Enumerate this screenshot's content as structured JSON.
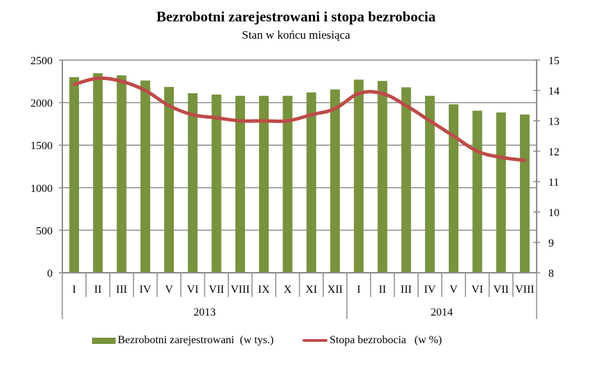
{
  "header": {
    "title": "Bezrobotni zarejestrowani i stopa bezrobocia",
    "subtitle": "Stan w końcu miesiąca"
  },
  "legend": {
    "bar_label": "Bezrobotni zarejestrowani  (w tys.)",
    "line_label": "Stopa bezrobocia   (w %)"
  },
  "colors": {
    "bar": "#77933C",
    "line": "#BE4B48",
    "grid": "#8C8C8C",
    "axis": "#8C8C8C"
  },
  "chart_data": {
    "type": "bar+line",
    "title": "Bezrobotni zarejestrowani i stopa bezrobocia",
    "subtitle": "Stan w końcu miesiąca",
    "categories": [
      "I",
      "II",
      "III",
      "IV",
      "V",
      "VI",
      "VII",
      "VIII",
      "IX",
      "X",
      "XI",
      "XII",
      "I",
      "II",
      "III",
      "IV",
      "V",
      "VI",
      "VII",
      "VIII"
    ],
    "groups": [
      {
        "label": "2013",
        "start": 0,
        "count": 12
      },
      {
        "label": "2014",
        "start": 12,
        "count": 8
      }
    ],
    "series": [
      {
        "name": "Bezrobotni zarejestrowani  (w tys.)",
        "type": "bar",
        "axis": "left",
        "values": [
          2300,
          2345,
          2320,
          2260,
          2185,
          2110,
          2095,
          2080,
          2080,
          2080,
          2120,
          2155,
          2270,
          2255,
          2180,
          2080,
          1980,
          1905,
          1885,
          1860
        ]
      },
      {
        "name": "Stopa bezrobocia   (w %)",
        "type": "line",
        "axis": "right",
        "values": [
          14.2,
          14.4,
          14.3,
          14.0,
          13.5,
          13.2,
          13.1,
          13.0,
          13.0,
          13.0,
          13.2,
          13.4,
          13.9,
          13.9,
          13.5,
          13.0,
          12.5,
          12.0,
          11.8,
          11.7
        ]
      }
    ],
    "y_left": {
      "min": 0,
      "max": 2500,
      "step": 500,
      "ticks": [
        "0",
        "500",
        "1000",
        "1500",
        "2000",
        "2500"
      ]
    },
    "y_right": {
      "min": 8,
      "max": 15,
      "step": 1,
      "ticks": [
        "8",
        "9",
        "10",
        "11",
        "12",
        "13",
        "14",
        "15"
      ]
    },
    "xlabel": "",
    "ylabel": "",
    "grid": true,
    "legend_position": "bottom"
  }
}
